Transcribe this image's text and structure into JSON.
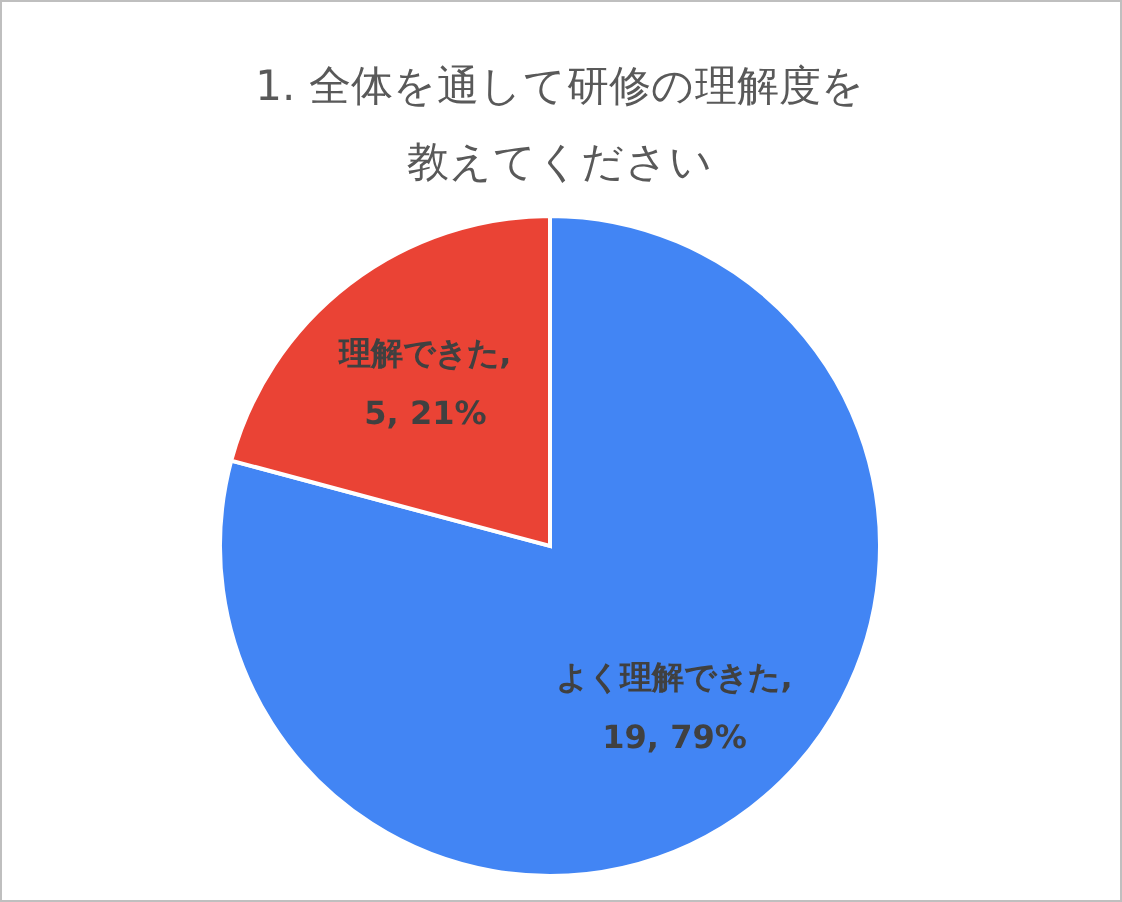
{
  "chart_data": {
    "type": "pie",
    "title": "1. 全体を通して研修の理解度を教えてください",
    "categories": [
      "よく理解できた",
      "理解できた"
    ],
    "values": [
      19,
      5
    ],
    "colors": [
      "#4285f4",
      "#ea4335"
    ],
    "value_labels": [
      ", 19, 79%",
      ", 5, 21%"
    ],
    "legend": false
  }
}
